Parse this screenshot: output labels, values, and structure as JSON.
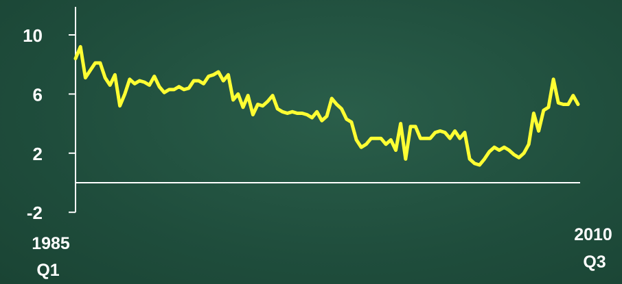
{
  "chart_data": {
    "type": "line",
    "title": "",
    "xlabel": "",
    "ylabel": "",
    "ylim": [
      -2,
      12
    ],
    "yticks": [
      10,
      6,
      2,
      -2
    ],
    "x_start_label": [
      "1985",
      "Q1"
    ],
    "x_end_label": [
      "2010",
      "Q3"
    ],
    "grid": false,
    "legend": "none",
    "colors": {
      "line": "#ffff33",
      "axis": "#ffffff",
      "background": "#224f3e"
    },
    "series": [
      {
        "x": [
          "1985 Q1",
          "1985 Q2",
          "1985 Q3",
          "1985 Q4",
          "1986 Q1",
          "1986 Q2",
          "1986 Q3",
          "1986 Q4",
          "1987 Q1",
          "1987 Q2",
          "1987 Q3",
          "1987 Q4",
          "1988 Q1",
          "1988 Q2",
          "1988 Q3",
          "1988 Q4",
          "1989 Q1",
          "1989 Q2",
          "1989 Q3",
          "1989 Q4",
          "1990 Q1",
          "1990 Q2",
          "1990 Q3",
          "1990 Q4",
          "1991 Q1",
          "1991 Q2",
          "1991 Q3",
          "1991 Q4",
          "1992 Q1",
          "1992 Q2",
          "1992 Q3",
          "1992 Q4",
          "1993 Q1",
          "1993 Q2",
          "1993 Q3",
          "1993 Q4",
          "1994 Q1",
          "1994 Q2",
          "1994 Q3",
          "1994 Q4",
          "1995 Q1",
          "1995 Q2",
          "1995 Q3",
          "1995 Q4",
          "1996 Q1",
          "1996 Q2",
          "1996 Q3",
          "1996 Q4",
          "1997 Q1",
          "1997 Q2",
          "1997 Q3",
          "1997 Q4",
          "1998 Q1",
          "1998 Q2",
          "1998 Q3",
          "1998 Q4",
          "1999 Q1",
          "1999 Q2",
          "1999 Q3",
          "1999 Q4",
          "2000 Q1",
          "2000 Q2",
          "2000 Q3",
          "2000 Q4",
          "2001 Q1",
          "2001 Q2",
          "2001 Q3",
          "2001 Q4",
          "2002 Q1",
          "2002 Q2",
          "2002 Q3",
          "2002 Q4",
          "2003 Q1",
          "2003 Q2",
          "2003 Q3",
          "2003 Q4",
          "2004 Q1",
          "2004 Q2",
          "2004 Q3",
          "2004 Q4",
          "2005 Q1",
          "2005 Q2",
          "2005 Q3",
          "2005 Q4",
          "2006 Q1",
          "2006 Q2",
          "2006 Q3",
          "2006 Q4",
          "2007 Q1",
          "2007 Q2",
          "2007 Q3",
          "2007 Q4",
          "2008 Q1",
          "2008 Q2",
          "2008 Q3",
          "2008 Q4",
          "2009 Q1",
          "2009 Q2",
          "2009 Q3",
          "2009 Q4",
          "2010 Q1",
          "2010 Q2",
          "2010 Q3"
        ],
        "values": [
          8.4,
          9.2,
          7.1,
          7.6,
          8.1,
          8.1,
          7.1,
          6.6,
          7.3,
          5.2,
          6.0,
          7.0,
          6.7,
          6.9,
          6.8,
          6.6,
          7.2,
          6.5,
          6.1,
          6.3,
          6.3,
          6.5,
          6.3,
          6.4,
          6.9,
          6.9,
          6.7,
          7.2,
          7.3,
          7.5,
          6.9,
          7.3,
          5.6,
          6.0,
          5.1,
          5.9,
          4.6,
          5.3,
          5.2,
          5.5,
          5.9,
          5.0,
          4.8,
          4.7,
          4.8,
          4.7,
          4.7,
          4.6,
          4.4,
          4.8,
          4.2,
          4.5,
          5.7,
          5.3,
          5.0,
          4.3,
          4.1,
          2.9,
          2.4,
          2.6,
          3.0,
          3.0,
          3.0,
          2.6,
          2.9,
          2.2,
          4.0,
          1.6,
          3.8,
          3.8,
          3.0,
          3.0,
          3.0,
          3.4,
          3.5,
          3.4,
          3.0,
          3.5,
          3.0,
          3.4,
          1.6,
          1.3,
          1.2,
          1.6,
          2.1,
          2.4,
          2.2,
          2.4,
          2.2,
          1.9,
          1.7,
          2.0,
          2.6,
          4.7,
          3.5,
          4.9,
          5.1,
          7.0,
          5.4,
          5.3,
          5.3,
          5.9,
          5.3
        ]
      }
    ]
  }
}
